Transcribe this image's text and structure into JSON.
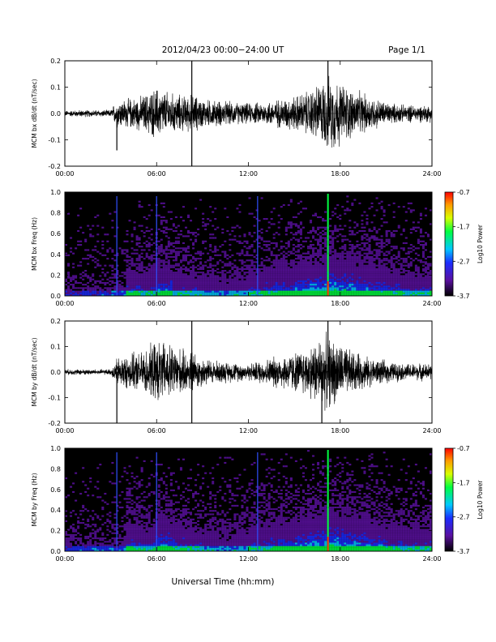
{
  "header": {
    "title": "2012/04/23  00:00−24:00 UT",
    "page": "Page 1/1"
  },
  "xaxis": {
    "label": "Universal Time (hh:mm)",
    "ticks": [
      "00:00",
      "06:00",
      "12:00",
      "18:00",
      "24:00"
    ],
    "range_hours": [
      0,
      24
    ]
  },
  "colorbar": {
    "label": "Log10 Power",
    "ticks": [
      "-0.7",
      "-1.7",
      "-2.7",
      "-3.7"
    ],
    "range": [
      -3.7,
      -0.7
    ],
    "colors": [
      "#000000",
      "#5a10a0",
      "#1b2cff",
      "#00c8ff",
      "#00ff40",
      "#d8ff00",
      "#ff9a00",
      "#ff0000"
    ]
  },
  "chart_data": [
    {
      "type": "line",
      "ylabel": "MCM bx dB/dt (nT/sec)",
      "ylim": [
        -0.2,
        0.2
      ],
      "yticks": [
        "0.2",
        "0.1",
        "0.0",
        "-0.1",
        "-0.2"
      ],
      "x_hours": [
        0,
        1,
        2,
        3,
        3.4,
        4,
        5,
        6,
        7,
        8,
        8.3,
        9,
        10,
        11,
        12,
        13,
        14,
        15,
        16,
        16.5,
        17,
        17.5,
        18,
        19,
        20,
        21,
        22,
        23,
        24
      ],
      "amplitude": [
        0.01,
        0.012,
        0.012,
        0.012,
        0.05,
        0.05,
        0.06,
        0.09,
        0.07,
        0.06,
        0.07,
        0.05,
        0.045,
        0.04,
        0.035,
        0.04,
        0.05,
        0.06,
        0.08,
        0.1,
        0.12,
        0.13,
        0.11,
        0.08,
        0.06,
        0.04,
        0.03,
        0.03,
        0.03
      ],
      "spikes": [
        {
          "hour": 3.4,
          "value": -0.14
        },
        {
          "hour": 8.3,
          "value": -0.2
        },
        {
          "hour": 8.3,
          "value": 0.2
        },
        {
          "hour": 17.2,
          "value": 0.2
        }
      ]
    },
    {
      "type": "heatmap",
      "ylabel": "MCM bx Freq (Hz)",
      "ylim": [
        0,
        1
      ],
      "yticks": [
        "1.0",
        "0.8",
        "0.6",
        "0.4",
        "0.2",
        "0.0"
      ],
      "activity": [
        0.1,
        0.12,
        0.12,
        0.15,
        0.35,
        0.3,
        0.4,
        0.3,
        0.28,
        0.25,
        0.22,
        0.25,
        0.3,
        0.35,
        0.4,
        0.45,
        0.5,
        0.55,
        0.52,
        0.45,
        0.4,
        0.35,
        0.3,
        0.3
      ],
      "bright_lines_hours": [
        3.4,
        6.0,
        12.6,
        17.2
      ]
    },
    {
      "type": "line",
      "ylabel": "MCM by dB/dt (nT/sec)",
      "ylim": [
        -0.2,
        0.2
      ],
      "yticks": [
        "0.2",
        "0.1",
        "0.0",
        "-0.1",
        "-0.2"
      ],
      "x_hours": [
        0,
        1,
        2,
        3,
        3.4,
        4,
        5,
        6,
        7,
        8,
        8.3,
        9,
        10,
        11,
        12,
        13,
        14,
        15,
        16,
        16.5,
        17,
        17.5,
        18,
        19,
        20,
        21,
        22,
        23,
        24
      ],
      "amplitude": [
        0.01,
        0.01,
        0.01,
        0.01,
        0.05,
        0.06,
        0.07,
        0.11,
        0.1,
        0.07,
        0.08,
        0.05,
        0.04,
        0.035,
        0.03,
        0.045,
        0.06,
        0.07,
        0.09,
        0.12,
        0.13,
        0.12,
        0.1,
        0.07,
        0.05,
        0.04,
        0.03,
        0.03,
        0.03
      ],
      "spikes": [
        {
          "hour": 3.4,
          "value": -0.2
        },
        {
          "hour": 8.3,
          "value": -0.2
        },
        {
          "hour": 8.3,
          "value": 0.2
        },
        {
          "hour": 17.2,
          "value": 0.2
        },
        {
          "hour": 16.8,
          "value": -0.2
        }
      ]
    },
    {
      "type": "heatmap",
      "ylabel": "MCM by Freq (Hz)",
      "ylim": [
        0,
        1
      ],
      "yticks": [
        "1.0",
        "0.8",
        "0.6",
        "0.4",
        "0.2",
        "0.0"
      ],
      "activity": [
        0.12,
        0.14,
        0.14,
        0.15,
        0.35,
        0.3,
        0.45,
        0.35,
        0.3,
        0.25,
        0.22,
        0.25,
        0.3,
        0.35,
        0.4,
        0.45,
        0.52,
        0.55,
        0.5,
        0.45,
        0.4,
        0.35,
        0.3,
        0.3
      ],
      "bright_lines_hours": [
        3.4,
        6.0,
        12.6,
        17.2
      ]
    }
  ]
}
